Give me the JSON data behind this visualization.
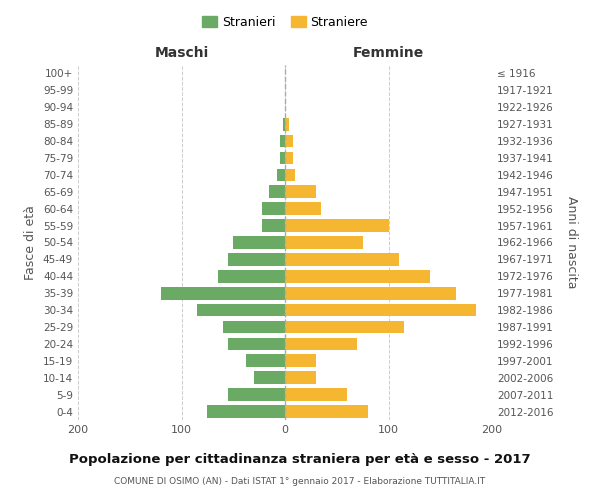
{
  "age_groups": [
    "0-4",
    "5-9",
    "10-14",
    "15-19",
    "20-24",
    "25-29",
    "30-34",
    "35-39",
    "40-44",
    "45-49",
    "50-54",
    "55-59",
    "60-64",
    "65-69",
    "70-74",
    "75-79",
    "80-84",
    "85-89",
    "90-94",
    "95-99",
    "100+"
  ],
  "birth_years": [
    "2012-2016",
    "2007-2011",
    "2002-2006",
    "1997-2001",
    "1992-1996",
    "1987-1991",
    "1982-1986",
    "1977-1981",
    "1972-1976",
    "1967-1971",
    "1962-1966",
    "1957-1961",
    "1952-1956",
    "1947-1951",
    "1942-1946",
    "1937-1941",
    "1932-1936",
    "1927-1931",
    "1922-1926",
    "1917-1921",
    "≤ 1916"
  ],
  "maschi": [
    75,
    55,
    30,
    38,
    55,
    60,
    85,
    120,
    65,
    55,
    50,
    22,
    22,
    15,
    8,
    5,
    5,
    2,
    0,
    0,
    0
  ],
  "femmine": [
    80,
    60,
    30,
    30,
    70,
    115,
    185,
    165,
    140,
    110,
    75,
    100,
    35,
    30,
    10,
    8,
    8,
    4,
    0,
    0,
    0
  ],
  "male_color": "#6aaa64",
  "female_color": "#f5b731",
  "background_color": "#ffffff",
  "grid_color": "#cccccc",
  "title": "Popolazione per cittadinanza straniera per età e sesso - 2017",
  "subtitle": "COMUNE DI OSIMO (AN) - Dati ISTAT 1° gennaio 2017 - Elaborazione TUTTITALIA.IT",
  "ylabel_left": "Fasce di età",
  "ylabel_right": "Anni di nascita",
  "xlabel_left": "Maschi",
  "xlabel_right": "Femmine",
  "legend_male": "Stranieri",
  "legend_female": "Straniere",
  "xlim": 200,
  "bar_height": 0.75
}
